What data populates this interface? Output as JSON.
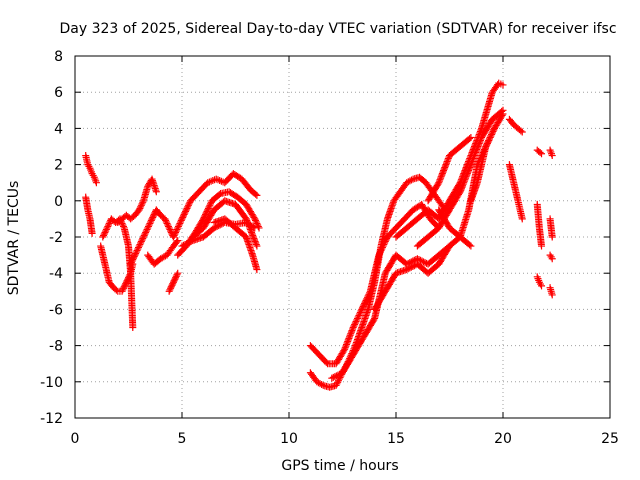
{
  "chart_data": {
    "type": "scatter",
    "title": "Day 323 of 2025, Sidereal Day-to-day VTEC variation (SDTVAR) for receiver ifsc",
    "xlabel": "GPS time / hours",
    "ylabel": "SDTVAR / TECUs",
    "xlim": [
      0,
      25
    ],
    "ylim": [
      -12,
      8
    ],
    "x_ticks": [
      0,
      5,
      10,
      15,
      20,
      25
    ],
    "y_ticks": [
      -12,
      -10,
      -8,
      -6,
      -4,
      -2,
      0,
      2,
      4,
      6,
      8
    ],
    "x_tick_labels": [
      "0",
      "5",
      "10",
      "15",
      "20",
      "25"
    ],
    "y_tick_labels": [
      "-12",
      "-10",
      "-8",
      "-6",
      "-4",
      "-2",
      "0",
      "2",
      "4",
      "6",
      "8"
    ],
    "grid": true,
    "marker": "+",
    "color": "#ff0000",
    "series": [
      {
        "name": "s1",
        "x": [
          0.5,
          0.6,
          0.7,
          0.8,
          0.9,
          1.0
        ],
        "y": [
          2.5,
          2.0,
          1.8,
          1.5,
          1.3,
          1.0
        ]
      },
      {
        "name": "s2",
        "x": [
          0.5,
          0.6,
          0.7,
          0.8
        ],
        "y": [
          0.2,
          -0.5,
          -1.0,
          -1.8
        ]
      },
      {
        "name": "s3",
        "x": [
          1.2,
          1.4,
          1.6,
          1.8,
          2.0,
          2.2,
          2.4,
          2.6,
          2.7
        ],
        "y": [
          -2.5,
          -3.5,
          -4.5,
          -4.8,
          -5.0,
          -5.0,
          -4.5,
          -4.0,
          -3.5
        ]
      },
      {
        "name": "s4",
        "x": [
          1.3,
          1.5,
          1.7,
          1.9,
          2.1,
          2.3,
          2.5,
          2.6,
          2.65,
          2.7
        ],
        "y": [
          -2.0,
          -1.5,
          -1.0,
          -1.2,
          -1.0,
          -1.5,
          -2.5,
          -4.0,
          -5.5,
          -7.0
        ]
      },
      {
        "name": "s5",
        "x": [
          2.0,
          2.2,
          2.4,
          2.6,
          2.8,
          3.0,
          3.2,
          3.4,
          3.6,
          3.8
        ],
        "y": [
          -1.2,
          -1.0,
          -0.8,
          -1.0,
          -0.8,
          -0.5,
          0.0,
          0.8,
          1.2,
          0.5
        ]
      },
      {
        "name": "s6",
        "x": [
          2.6,
          2.8,
          3.0,
          3.2,
          3.4,
          3.6,
          3.8,
          4.0,
          4.2,
          4.4,
          4.6
        ],
        "y": [
          -3.5,
          -3.0,
          -2.5,
          -2.0,
          -1.5,
          -1.0,
          -0.5,
          -0.8,
          -1.0,
          -1.5,
          -2.0
        ]
      },
      {
        "name": "s7",
        "x": [
          3.4,
          3.7,
          4.0,
          4.3,
          4.6,
          4.8
        ],
        "y": [
          -3.0,
          -3.5,
          -3.2,
          -3.0,
          -2.5,
          -2.2
        ]
      },
      {
        "name": "s8",
        "x": [
          4.4,
          4.6,
          4.8
        ],
        "y": [
          -5.0,
          -4.5,
          -4.0
        ]
      },
      {
        "name": "s9",
        "x": [
          4.6,
          5.0,
          5.4,
          5.8,
          6.2,
          6.6,
          7.0,
          7.4,
          7.8,
          8.2,
          8.5
        ],
        "y": [
          -2.0,
          -1.0,
          0.0,
          0.5,
          1.0,
          1.2,
          1.0,
          1.5,
          1.2,
          0.6,
          0.3
        ]
      },
      {
        "name": "s10",
        "x": [
          4.8,
          5.2,
          5.6,
          6.0,
          6.4,
          6.8,
          7.2,
          7.6,
          8.0,
          8.4,
          8.6
        ],
        "y": [
          -3.0,
          -2.5,
          -1.8,
          -1.0,
          0.0,
          0.4,
          0.5,
          0.2,
          -0.2,
          -1.0,
          -1.5
        ]
      },
      {
        "name": "s11",
        "x": [
          5.0,
          5.5,
          6.0,
          6.5,
          7.0,
          7.5,
          8.0,
          8.4
        ],
        "y": [
          -2.5,
          -2.2,
          -2.0,
          -1.5,
          -1.2,
          -1.3,
          -1.2,
          -1.5
        ]
      },
      {
        "name": "s12",
        "x": [
          5.5,
          6.0,
          6.5,
          7.0,
          7.5,
          8.0,
          8.5
        ],
        "y": [
          -2.0,
          -1.5,
          -0.5,
          0.0,
          -0.2,
          -1.0,
          -2.5
        ]
      },
      {
        "name": "s13",
        "x": [
          6.5,
          7.0,
          7.5,
          8.0,
          8.3,
          8.5
        ],
        "y": [
          -1.2,
          -1.0,
          -1.5,
          -2.0,
          -3.0,
          -3.8
        ]
      },
      {
        "name": "s14",
        "x": [
          11.0,
          11.3,
          11.6,
          11.9,
          12.2,
          12.5,
          12.8,
          13.1,
          13.4,
          13.7,
          14.0,
          14.3,
          14.6,
          14.9,
          15.2,
          15.5,
          15.8,
          16.1,
          16.4,
          16.7,
          17.0,
          17.3
        ],
        "y": [
          -9.5,
          -10.0,
          -10.2,
          -10.3,
          -10.2,
          -9.5,
          -8.8,
          -8.0,
          -7.0,
          -6.0,
          -4.5,
          -2.5,
          -1.0,
          0.0,
          0.5,
          1.0,
          1.2,
          1.3,
          1.0,
          0.5,
          0.0,
          -0.5
        ]
      },
      {
        "name": "s15",
        "x": [
          11.0,
          11.4,
          11.8,
          12.2,
          12.6,
          13.0,
          13.4,
          13.8,
          14.2,
          14.6,
          15.0,
          15.4,
          15.8,
          16.2,
          16.6,
          17.0
        ],
        "y": [
          -8.0,
          -8.5,
          -9.0,
          -9.0,
          -8.2,
          -7.0,
          -6.0,
          -5.0,
          -3.0,
          -2.0,
          -1.5,
          -1.0,
          -0.5,
          -0.2,
          -1.0,
          -1.5
        ]
      },
      {
        "name": "s16",
        "x": [
          12.0,
          12.5,
          13.0,
          13.5,
          14.0,
          14.5,
          15.0,
          15.5,
          16.0,
          16.5,
          17.0,
          17.5
        ],
        "y": [
          -9.8,
          -9.5,
          -8.5,
          -7.5,
          -6.5,
          -4.0,
          -3.0,
          -3.5,
          -3.2,
          -3.5,
          -3.0,
          -2.5
        ]
      },
      {
        "name": "s17",
        "x": [
          14.0,
          14.5,
          15.0,
          15.5,
          16.0,
          16.5,
          17.0,
          17.5,
          18.0,
          18.5
        ],
        "y": [
          -6.0,
          -5.0,
          -4.0,
          -3.8,
          -3.5,
          -4.0,
          -3.5,
          -2.5,
          -2.0,
          -2.5
        ]
      },
      {
        "name": "s18",
        "x": [
          15.0,
          15.5,
          16.0,
          16.5,
          17.0,
          17.5,
          18.0,
          18.5,
          19.0,
          19.5,
          19.8,
          20.0
        ],
        "y": [
          -2.0,
          -1.5,
          -1.0,
          -0.5,
          -1.0,
          0.0,
          1.0,
          2.5,
          4.0,
          6.0,
          6.5,
          6.4
        ]
      },
      {
        "name": "s19",
        "x": [
          16.0,
          16.5,
          17.0,
          17.5,
          18.0,
          18.5,
          19.0,
          19.5,
          20.0
        ],
        "y": [
          -2.5,
          -2.0,
          -1.5,
          -0.5,
          0.5,
          2.0,
          3.5,
          4.5,
          5.0
        ]
      },
      {
        "name": "s20",
        "x": [
          17.0,
          17.5,
          18.0,
          18.4,
          18.8,
          19.2,
          19.6,
          20.0
        ],
        "y": [
          -0.5,
          -1.5,
          -2.0,
          -0.5,
          2.0,
          3.0,
          4.0,
          4.8
        ]
      },
      {
        "name": "s21",
        "x": [
          16.5,
          17.0,
          17.5,
          18.0,
          18.5
        ],
        "y": [
          0.0,
          1.0,
          2.5,
          3.0,
          3.5
        ]
      },
      {
        "name": "s22",
        "x": [
          18.5,
          18.8,
          19.0,
          19.2,
          19.4,
          19.6
        ],
        "y": [
          0.0,
          1.0,
          2.0,
          3.0,
          3.5,
          4.0
        ]
      },
      {
        "name": "s23",
        "x": [
          20.3,
          20.5,
          20.7,
          20.9
        ],
        "y": [
          4.5,
          4.2,
          4.0,
          3.8
        ]
      },
      {
        "name": "s24",
        "x": [
          20.3,
          20.5,
          20.7,
          20.8,
          20.9
        ],
        "y": [
          2.0,
          1.0,
          0.0,
          -0.5,
          -1.0
        ]
      },
      {
        "name": "s25",
        "x": [
          21.6,
          21.8
        ],
        "y": [
          2.8,
          2.6
        ]
      },
      {
        "name": "s26",
        "x": [
          21.6,
          21.7,
          21.8
        ],
        "y": [
          -0.2,
          -1.5,
          -2.5
        ]
      },
      {
        "name": "s27",
        "x": [
          21.6,
          21.7,
          21.8
        ],
        "y": [
          -4.2,
          -4.5,
          -4.7
        ]
      },
      {
        "name": "s28",
        "x": [
          22.2,
          22.3
        ],
        "y": [
          2.8,
          2.5
        ]
      },
      {
        "name": "s29",
        "x": [
          22.2,
          22.3
        ],
        "y": [
          -1.0,
          -2.0
        ]
      },
      {
        "name": "s30",
        "x": [
          22.2,
          22.3
        ],
        "y": [
          -3.0,
          -3.2
        ]
      },
      {
        "name": "s31",
        "x": [
          22.2,
          22.3
        ],
        "y": [
          -4.8,
          -5.2
        ]
      }
    ]
  }
}
